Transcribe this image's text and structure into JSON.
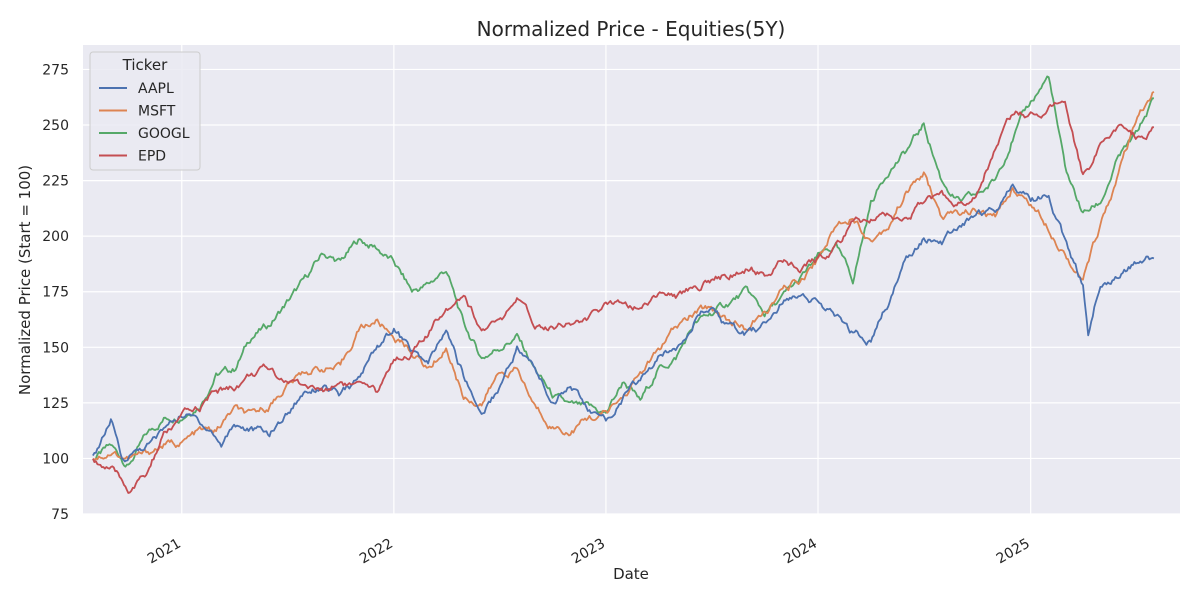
{
  "chart_data": {
    "type": "line",
    "title": "Normalized Price - Equities(5Y)",
    "xlabel": "Date",
    "ylabel": "Normalized Price (Start = 100)",
    "xlim": [
      "2020-07-15",
      "2025-09-15"
    ],
    "ylim": [
      75,
      286
    ],
    "x_ticks": [
      "2021",
      "2022",
      "2023",
      "2024",
      "2025"
    ],
    "y_ticks": [
      75,
      100,
      125,
      150,
      175,
      200,
      225,
      250,
      275
    ],
    "grid": true,
    "legend": {
      "title": "Ticker",
      "placement": "top-left"
    },
    "colors": {
      "background": "#eaeaf2",
      "grid": "#ffffff",
      "text": "#262626"
    },
    "series": [
      {
        "name": "AAPL",
        "color": "#4c72b0",
        "points": [
          [
            "2020-08-01",
            100
          ],
          [
            "2020-09-01",
            117
          ],
          [
            "2020-09-20",
            99
          ],
          [
            "2020-10-10",
            103
          ],
          [
            "2020-11-10",
            107
          ],
          [
            "2020-12-01",
            113
          ],
          [
            "2021-01-01",
            120
          ],
          [
            "2021-01-25",
            118
          ],
          [
            "2021-02-20",
            113
          ],
          [
            "2021-03-10",
            106
          ],
          [
            "2021-04-01",
            116
          ],
          [
            "2021-05-01",
            113
          ],
          [
            "2021-06-01",
            111
          ],
          [
            "2021-07-01",
            120
          ],
          [
            "2021-08-01",
            131
          ],
          [
            "2021-09-01",
            133
          ],
          [
            "2021-10-01",
            128
          ],
          [
            "2021-11-01",
            135
          ],
          [
            "2021-12-01",
            150
          ],
          [
            "2022-01-01",
            159
          ],
          [
            "2022-02-01",
            148
          ],
          [
            "2022-03-01",
            142
          ],
          [
            "2022-04-01",
            157
          ],
          [
            "2022-05-01",
            137
          ],
          [
            "2022-06-01",
            120
          ],
          [
            "2022-07-01",
            132
          ],
          [
            "2022-08-01",
            150
          ],
          [
            "2022-09-01",
            140
          ],
          [
            "2022-10-01",
            125
          ],
          [
            "2022-11-01",
            135
          ],
          [
            "2022-12-01",
            122
          ],
          [
            "2023-01-01",
            116
          ],
          [
            "2023-02-01",
            128
          ],
          [
            "2023-03-01",
            135
          ],
          [
            "2023-04-01",
            145
          ],
          [
            "2023-05-01",
            150
          ],
          [
            "2023-06-01",
            163
          ],
          [
            "2023-07-01",
            168
          ],
          [
            "2023-08-01",
            158
          ],
          [
            "2023-09-01",
            155
          ],
          [
            "2023-10-01",
            160
          ],
          [
            "2023-11-01",
            170
          ],
          [
            "2023-12-01",
            176
          ],
          [
            "2024-01-01",
            170
          ],
          [
            "2024-02-01",
            163
          ],
          [
            "2024-03-01",
            156
          ],
          [
            "2024-04-01",
            153
          ],
          [
            "2024-05-01",
            170
          ],
          [
            "2024-06-01",
            190
          ],
          [
            "2024-07-01",
            200
          ],
          [
            "2024-08-01",
            197
          ],
          [
            "2024-09-01",
            205
          ],
          [
            "2024-10-01",
            210
          ],
          [
            "2024-11-01",
            212
          ],
          [
            "2024-12-01",
            225
          ],
          [
            "2025-01-01",
            216
          ],
          [
            "2025-02-01",
            218
          ],
          [
            "2025-03-01",
            198
          ],
          [
            "2025-04-01",
            178
          ],
          [
            "2025-04-10",
            157
          ],
          [
            "2025-05-01",
            180
          ],
          [
            "2025-06-01",
            183
          ],
          [
            "2025-07-01",
            187
          ],
          [
            "2025-08-01",
            190
          ]
        ]
      },
      {
        "name": "MSFT",
        "color": "#dd8452",
        "points": [
          [
            "2020-08-01",
            100
          ],
          [
            "2020-09-01",
            103
          ],
          [
            "2020-10-01",
            100
          ],
          [
            "2020-11-01",
            102
          ],
          [
            "2020-12-01",
            106
          ],
          [
            "2021-01-01",
            107
          ],
          [
            "2021-02-01",
            112
          ],
          [
            "2021-03-01",
            112
          ],
          [
            "2021-04-01",
            122
          ],
          [
            "2021-05-01",
            118
          ],
          [
            "2021-06-01",
            124
          ],
          [
            "2021-07-01",
            133
          ],
          [
            "2021-08-01",
            139
          ],
          [
            "2021-09-01",
            141
          ],
          [
            "2021-10-01",
            140
          ],
          [
            "2021-11-01",
            158
          ],
          [
            "2021-12-01",
            162
          ],
          [
            "2022-01-01",
            155
          ],
          [
            "2022-02-01",
            148
          ],
          [
            "2022-03-01",
            140
          ],
          [
            "2022-04-01",
            150
          ],
          [
            "2022-05-01",
            128
          ],
          [
            "2022-06-01",
            125
          ],
          [
            "2022-07-01",
            138
          ],
          [
            "2022-08-01",
            140
          ],
          [
            "2022-09-01",
            123
          ],
          [
            "2022-10-01",
            115
          ],
          [
            "2022-11-01",
            112
          ],
          [
            "2022-12-01",
            118
          ],
          [
            "2023-01-01",
            120
          ],
          [
            "2023-02-01",
            128
          ],
          [
            "2023-03-01",
            138
          ],
          [
            "2023-04-01",
            148
          ],
          [
            "2023-05-01",
            158
          ],
          [
            "2023-06-01",
            165
          ],
          [
            "2023-07-01",
            168
          ],
          [
            "2023-08-01",
            162
          ],
          [
            "2023-09-01",
            158
          ],
          [
            "2023-10-01",
            165
          ],
          [
            "2023-11-01",
            175
          ],
          [
            "2023-12-01",
            180
          ],
          [
            "2024-01-01",
            190
          ],
          [
            "2024-02-01",
            205
          ],
          [
            "2024-03-01",
            210
          ],
          [
            "2024-04-01",
            198
          ],
          [
            "2024-05-01",
            205
          ],
          [
            "2024-06-01",
            220
          ],
          [
            "2024-07-01",
            228
          ],
          [
            "2024-08-01",
            208
          ],
          [
            "2024-09-01",
            210
          ],
          [
            "2024-10-01",
            212
          ],
          [
            "2024-11-01",
            208
          ],
          [
            "2024-12-01",
            222
          ],
          [
            "2025-01-01",
            215
          ],
          [
            "2025-02-01",
            205
          ],
          [
            "2025-03-01",
            193
          ],
          [
            "2025-04-01",
            180
          ],
          [
            "2025-05-01",
            205
          ],
          [
            "2025-06-01",
            228
          ],
          [
            "2025-07-01",
            250
          ],
          [
            "2025-08-01",
            265
          ]
        ]
      },
      {
        "name": "GOOGL",
        "color": "#55a868",
        "points": [
          [
            "2020-08-01",
            100
          ],
          [
            "2020-09-01",
            105
          ],
          [
            "2020-10-01",
            97
          ],
          [
            "2020-11-01",
            110
          ],
          [
            "2020-12-01",
            118
          ],
          [
            "2021-01-01",
            120
          ],
          [
            "2021-02-01",
            125
          ],
          [
            "2021-03-01",
            138
          ],
          [
            "2021-04-01",
            140
          ],
          [
            "2021-05-01",
            155
          ],
          [
            "2021-06-01",
            160
          ],
          [
            "2021-07-01",
            170
          ],
          [
            "2021-08-01",
            180
          ],
          [
            "2021-09-01",
            192
          ],
          [
            "2021-10-01",
            188
          ],
          [
            "2021-11-01",
            198
          ],
          [
            "2021-12-01",
            195
          ],
          [
            "2022-01-01",
            188
          ],
          [
            "2022-02-01",
            175
          ],
          [
            "2022-03-01",
            178
          ],
          [
            "2022-04-01",
            185
          ],
          [
            "2022-05-01",
            160
          ],
          [
            "2022-06-01",
            145
          ],
          [
            "2022-07-01",
            150
          ],
          [
            "2022-08-01",
            155
          ],
          [
            "2022-09-01",
            140
          ],
          [
            "2022-10-01",
            128
          ],
          [
            "2022-11-01",
            123
          ],
          [
            "2022-12-01",
            122
          ],
          [
            "2023-01-01",
            120
          ],
          [
            "2023-02-01",
            135
          ],
          [
            "2023-03-01",
            125
          ],
          [
            "2023-04-01",
            140
          ],
          [
            "2023-05-01",
            145
          ],
          [
            "2023-06-01",
            160
          ],
          [
            "2023-07-01",
            165
          ],
          [
            "2023-08-01",
            170
          ],
          [
            "2023-09-01",
            175
          ],
          [
            "2023-10-01",
            165
          ],
          [
            "2023-11-01",
            172
          ],
          [
            "2023-12-01",
            180
          ],
          [
            "2024-01-01",
            190
          ],
          [
            "2024-02-01",
            195
          ],
          [
            "2024-03-01",
            180
          ],
          [
            "2024-04-01",
            215
          ],
          [
            "2024-05-01",
            230
          ],
          [
            "2024-06-01",
            238
          ],
          [
            "2024-07-01",
            250
          ],
          [
            "2024-08-01",
            225
          ],
          [
            "2024-09-01",
            215
          ],
          [
            "2024-10-01",
            218
          ],
          [
            "2024-11-01",
            225
          ],
          [
            "2024-12-01",
            245
          ],
          [
            "2025-01-01",
            260
          ],
          [
            "2025-02-01",
            272
          ],
          [
            "2025-03-01",
            230
          ],
          [
            "2025-04-01",
            210
          ],
          [
            "2025-05-01",
            215
          ],
          [
            "2025-06-01",
            235
          ],
          [
            "2025-07-01",
            245
          ],
          [
            "2025-08-01",
            262
          ]
        ]
      },
      {
        "name": "EPD",
        "color": "#c44e52",
        "points": [
          [
            "2020-08-01",
            100
          ],
          [
            "2020-09-01",
            95
          ],
          [
            "2020-10-01",
            86
          ],
          [
            "2020-11-01",
            92
          ],
          [
            "2020-12-01",
            110
          ],
          [
            "2021-01-01",
            118
          ],
          [
            "2021-02-01",
            123
          ],
          [
            "2021-03-01",
            130
          ],
          [
            "2021-04-01",
            132
          ],
          [
            "2021-05-01",
            138
          ],
          [
            "2021-06-01",
            140
          ],
          [
            "2021-07-01",
            135
          ],
          [
            "2021-08-01",
            133
          ],
          [
            "2021-09-01",
            130
          ],
          [
            "2021-10-01",
            135
          ],
          [
            "2021-11-01",
            132
          ],
          [
            "2021-12-01",
            128
          ],
          [
            "2022-01-01",
            145
          ],
          [
            "2022-02-01",
            148
          ],
          [
            "2022-03-01",
            155
          ],
          [
            "2022-04-01",
            168
          ],
          [
            "2022-05-01",
            175
          ],
          [
            "2022-06-01",
            158
          ],
          [
            "2022-07-01",
            160
          ],
          [
            "2022-08-01",
            170
          ],
          [
            "2022-09-01",
            160
          ],
          [
            "2022-10-01",
            160
          ],
          [
            "2022-11-01",
            162
          ],
          [
            "2022-12-01",
            162
          ],
          [
            "2023-01-01",
            168
          ],
          [
            "2023-02-01",
            172
          ],
          [
            "2023-03-01",
            168
          ],
          [
            "2023-04-01",
            175
          ],
          [
            "2023-05-01",
            172
          ],
          [
            "2023-06-01",
            178
          ],
          [
            "2023-07-01",
            180
          ],
          [
            "2023-08-01",
            183
          ],
          [
            "2023-09-01",
            185
          ],
          [
            "2023-10-01",
            183
          ],
          [
            "2023-11-01",
            188
          ],
          [
            "2023-12-01",
            185
          ],
          [
            "2024-01-01",
            190
          ],
          [
            "2024-02-01",
            195
          ],
          [
            "2024-03-01",
            205
          ],
          [
            "2024-04-01",
            208
          ],
          [
            "2024-05-01",
            210
          ],
          [
            "2024-06-01",
            208
          ],
          [
            "2024-07-01",
            215
          ],
          [
            "2024-08-01",
            218
          ],
          [
            "2024-09-01",
            215
          ],
          [
            "2024-10-01",
            220
          ],
          [
            "2024-11-01",
            240
          ],
          [
            "2024-12-01",
            255
          ],
          [
            "2025-01-01",
            255
          ],
          [
            "2025-02-01",
            258
          ],
          [
            "2025-03-01",
            260
          ],
          [
            "2025-04-01",
            228
          ],
          [
            "2025-05-01",
            240
          ],
          [
            "2025-06-01",
            248
          ],
          [
            "2025-07-01",
            245
          ],
          [
            "2025-08-01",
            249
          ]
        ]
      }
    ]
  }
}
